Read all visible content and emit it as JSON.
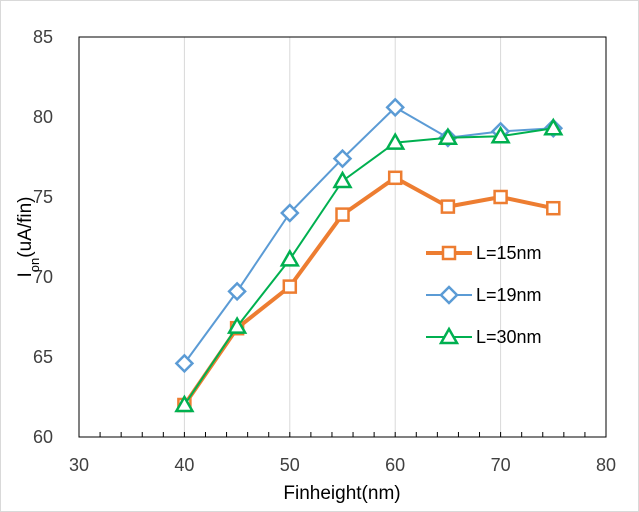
{
  "chart_data": {
    "type": "line",
    "title": "",
    "xlabel": "Finheight(nm)",
    "ylabel": {
      "main": "I",
      "sub": "on",
      "rest": "(uA/fin)"
    },
    "xlim": [
      30,
      80
    ],
    "ylim": [
      60,
      85
    ],
    "x_ticks": [
      30,
      40,
      50,
      60,
      70,
      80
    ],
    "y_ticks": [
      60,
      65,
      70,
      75,
      80,
      85
    ],
    "x_minor_step": 2,
    "grid": {
      "vertical": true,
      "horizontal": false
    },
    "legend_position": "right-middle",
    "series": [
      {
        "name": "L=15nm",
        "color": "#ed7d31",
        "marker": "square",
        "line_width": 4,
        "x": [
          40,
          45,
          50,
          55,
          60,
          65,
          70,
          75
        ],
        "y": [
          62.0,
          66.8,
          69.4,
          73.9,
          76.2,
          74.4,
          75.0,
          74.3
        ]
      },
      {
        "name": "L=19nm",
        "color": "#5b9bd5",
        "marker": "diamond",
        "line_width": 2,
        "x": [
          40,
          45,
          50,
          55,
          60,
          65,
          70,
          75
        ],
        "y": [
          64.6,
          69.1,
          74.0,
          77.4,
          80.6,
          78.7,
          79.1,
          79.3
        ]
      },
      {
        "name": "L=30nm",
        "color": "#00b050",
        "marker": "triangle",
        "line_width": 2,
        "x": [
          40,
          45,
          50,
          55,
          60,
          65,
          70,
          75
        ],
        "y": [
          62.0,
          66.9,
          71.1,
          76.0,
          78.4,
          78.7,
          78.8,
          79.3
        ]
      }
    ]
  }
}
